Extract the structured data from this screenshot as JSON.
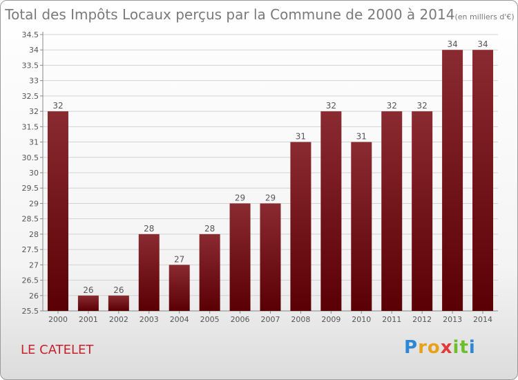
{
  "chart_data": {
    "type": "bar",
    "title": "Total des Impôts Locaux perçus par la Commune de 2000 à 2014",
    "unit_note": "(en milliers d'€)",
    "categories": [
      "2000",
      "2001",
      "2002",
      "2003",
      "2004",
      "2005",
      "2006",
      "2007",
      "2008",
      "2009",
      "2010",
      "2011",
      "2012",
      "2013",
      "2014"
    ],
    "values": [
      32,
      26,
      26,
      28,
      27,
      28,
      29,
      29,
      31,
      32,
      31,
      32,
      32,
      34,
      34
    ],
    "ylim": [
      25.5,
      34.5
    ],
    "yticks": [
      25.5,
      26,
      26.5,
      27,
      27.5,
      28,
      28.5,
      29,
      29.5,
      30,
      30.5,
      31,
      31.5,
      32,
      32.5,
      33,
      33.5,
      34,
      34.5
    ],
    "grid": true,
    "bar_color": "#7a0e14",
    "xlabel": "",
    "ylabel": ""
  },
  "footer": {
    "commune": "LE CATELET",
    "logo": [
      "P",
      "r",
      "o",
      "x",
      "i",
      "t",
      "i"
    ]
  }
}
